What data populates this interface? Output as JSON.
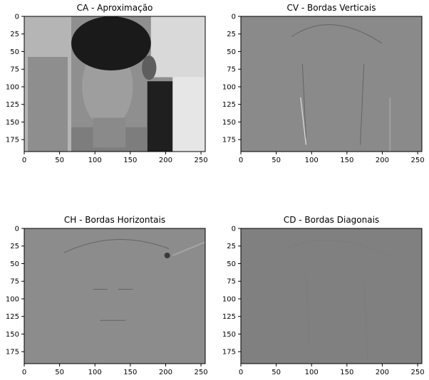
{
  "chart_data": [
    {
      "type": "heatmap",
      "title": "CA - Aproximação",
      "xlabel": "",
      "ylabel": "",
      "xlim": [
        0,
        256
      ],
      "ylim": [
        192,
        0
      ],
      "xticks": [
        0,
        50,
        100,
        150,
        200,
        250
      ],
      "yticks": [
        0,
        25,
        50,
        75,
        100,
        125,
        150,
        175
      ],
      "colormap": "gray",
      "content": "grayscale photo (approximation coefficients)",
      "base_color": "#8f8f8f"
    },
    {
      "type": "heatmap",
      "title": "CV - Bordas Verticais",
      "xlabel": "",
      "ylabel": "",
      "xlim": [
        0,
        256
      ],
      "ylim": [
        192,
        0
      ],
      "xticks": [
        0,
        50,
        100,
        150,
        200,
        250
      ],
      "yticks": [
        0,
        25,
        50,
        75,
        100,
        125,
        150,
        175
      ],
      "colormap": "gray",
      "content": "vertical edge coefficients",
      "base_color": "#8a8a8a"
    },
    {
      "type": "heatmap",
      "title": "CH - Bordas Horizontais",
      "xlabel": "",
      "ylabel": "",
      "xlim": [
        0,
        256
      ],
      "ylim": [
        192,
        0
      ],
      "xticks": [
        0,
        50,
        100,
        150,
        200,
        250
      ],
      "yticks": [
        0,
        25,
        50,
        75,
        100,
        125,
        150,
        175
      ],
      "colormap": "gray",
      "content": "horizontal edge coefficients",
      "base_color": "#8c8c8c"
    },
    {
      "type": "heatmap",
      "title": "CD - Bordas Diagonais",
      "xlabel": "",
      "ylabel": "",
      "xlim": [
        0,
        256
      ],
      "ylim": [
        192,
        0
      ],
      "xticks": [
        0,
        50,
        100,
        150,
        200,
        250
      ],
      "yticks": [
        0,
        25,
        50,
        75,
        100,
        125,
        150,
        175
      ],
      "colormap": "gray",
      "content": "diagonal edge coefficients",
      "base_color": "#808080"
    }
  ]
}
